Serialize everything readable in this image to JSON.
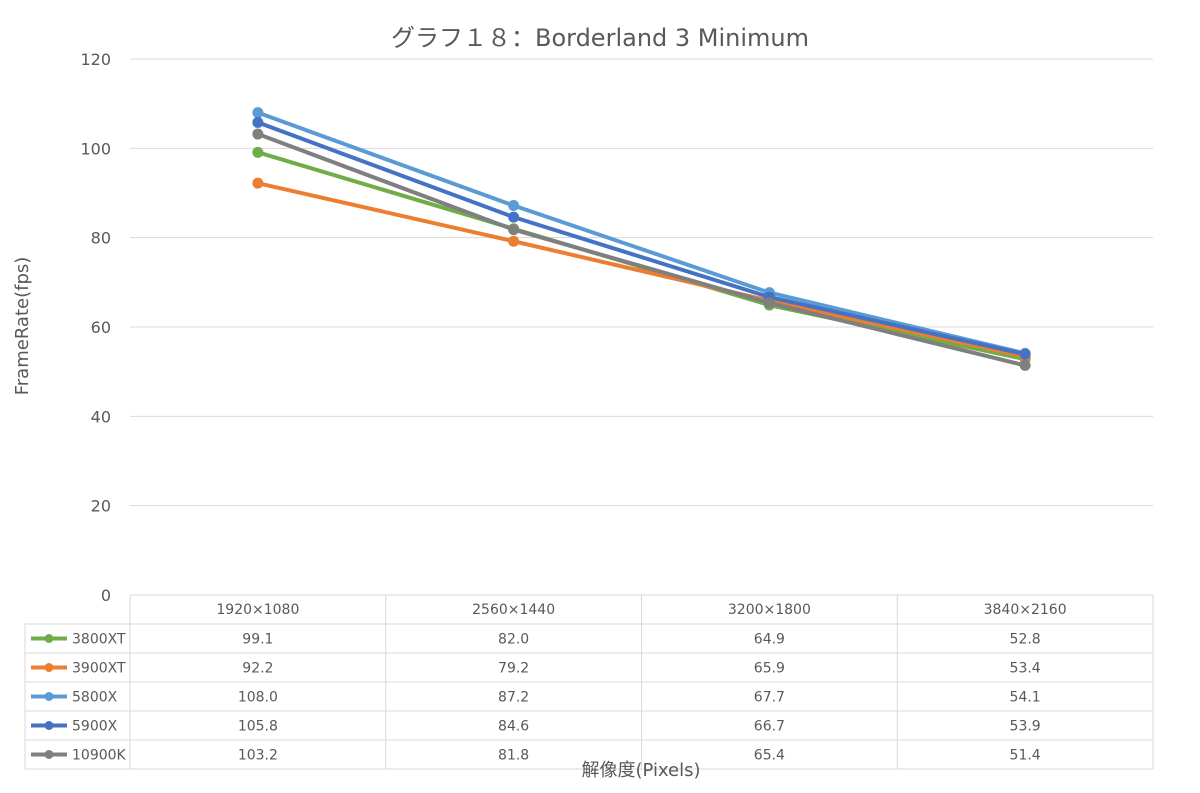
{
  "chart_data": {
    "type": "line",
    "title": "グラフ１８：Borderland 3 Minimum",
    "xlabel": "解像度(Pixels)",
    "ylabel": "FrameRate(fps)",
    "ylim": [
      0,
      120
    ],
    "yticks": [
      "0",
      "20",
      "40",
      "60",
      "80",
      "100",
      "120"
    ],
    "grid": true,
    "legend": "data-table",
    "categories": [
      "1920×1080",
      "2560×1440",
      "3200×1800",
      "3840×2160"
    ],
    "series": [
      {
        "name": "3800XT",
        "color": "#70ad47",
        "values": [
          99.1,
          82.0,
          64.9,
          52.8
        ],
        "labels": [
          "99.1",
          "82.0",
          "64.9",
          "52.8"
        ]
      },
      {
        "name": "3900XT",
        "color": "#ed7d31",
        "values": [
          92.2,
          79.2,
          65.9,
          53.4
        ],
        "labels": [
          "92.2",
          "79.2",
          "65.9",
          "53.4"
        ]
      },
      {
        "name": "5800X",
        "color": "#5b9bd5",
        "values": [
          108.0,
          87.2,
          67.7,
          54.1
        ],
        "labels": [
          "108.0",
          "87.2",
          "67.7",
          "54.1"
        ]
      },
      {
        "name": "5900X",
        "color": "#4472c4",
        "values": [
          105.8,
          84.6,
          66.7,
          53.9
        ],
        "labels": [
          "105.8",
          "84.6",
          "66.7",
          "53.9"
        ]
      },
      {
        "name": "10900K",
        "color": "#7f7f7f",
        "values": [
          103.2,
          81.8,
          65.4,
          51.4
        ],
        "labels": [
          "103.2",
          "81.8",
          "65.4",
          "51.4"
        ]
      }
    ]
  }
}
